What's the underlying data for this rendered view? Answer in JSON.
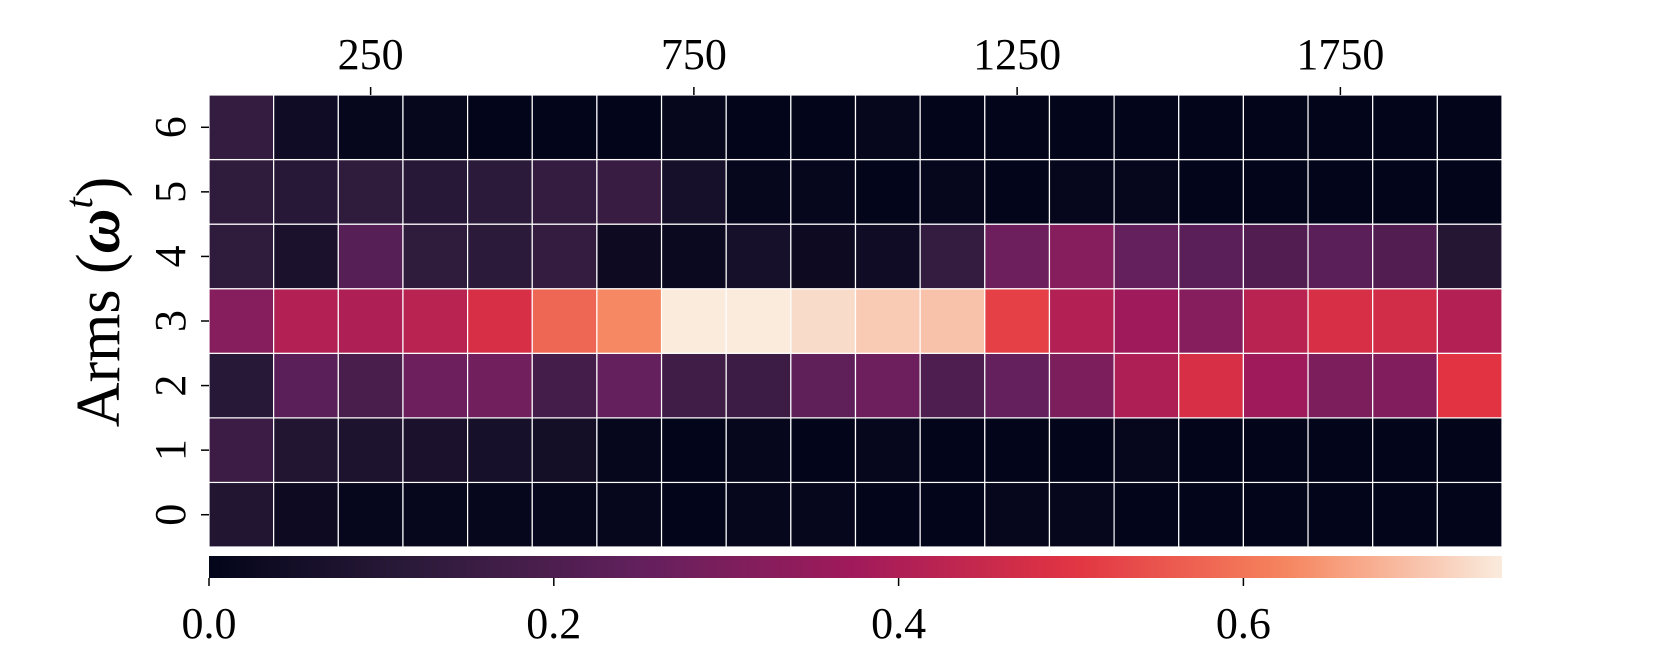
{
  "chart_data": {
    "type": "heatmap",
    "title": "",
    "xlabel": "",
    "ylabel_text": "Arms (",
    "ylabel_symbol": "ω",
    "ylabel_superscript": "t",
    "ylabel_close": ")",
    "x_ticks": [
      {
        "label": "250",
        "value": 250
      },
      {
        "label": "750",
        "value": 750
      },
      {
        "label": "1250",
        "value": 1250
      },
      {
        "label": "1750",
        "value": 1750
      }
    ],
    "x_range": [
      0,
      2000
    ],
    "n_columns": 20,
    "rows": [
      "0",
      "1",
      "2",
      "3",
      "4",
      "5",
      "6"
    ],
    "values": [
      [
        0.09,
        0.03,
        0.01,
        0.01,
        0.01,
        0.01,
        0.01,
        0.0,
        0.01,
        0.01,
        0.0,
        0.0,
        0.01,
        0.01,
        0.0,
        0.0,
        0.0,
        0.0,
        0.0,
        0.0
      ],
      [
        0.16,
        0.09,
        0.08,
        0.07,
        0.06,
        0.05,
        0.01,
        0.0,
        0.01,
        0.0,
        0.01,
        0.0,
        0.0,
        0.0,
        0.01,
        0.0,
        0.0,
        0.0,
        0.0,
        0.0
      ],
      [
        0.11,
        0.23,
        0.19,
        0.27,
        0.28,
        0.18,
        0.25,
        0.17,
        0.16,
        0.24,
        0.27,
        0.2,
        0.25,
        0.3,
        0.4,
        0.48,
        0.37,
        0.3,
        0.31,
        0.5
      ],
      [
        0.32,
        0.41,
        0.4,
        0.42,
        0.48,
        0.58,
        0.63,
        0.75,
        0.75,
        0.73,
        0.71,
        0.7,
        0.52,
        0.41,
        0.37,
        0.32,
        0.42,
        0.48,
        0.47,
        0.41
      ],
      [
        0.13,
        0.07,
        0.22,
        0.13,
        0.12,
        0.14,
        0.03,
        0.02,
        0.06,
        0.03,
        0.04,
        0.14,
        0.27,
        0.32,
        0.25,
        0.23,
        0.21,
        0.23,
        0.21,
        0.1
      ],
      [
        0.13,
        0.11,
        0.13,
        0.11,
        0.12,
        0.14,
        0.15,
        0.06,
        0.01,
        0.01,
        0.0,
        0.01,
        0.0,
        0.01,
        0.01,
        0.0,
        0.0,
        0.0,
        0.0,
        0.0
      ],
      [
        0.14,
        0.04,
        0.01,
        0.01,
        0.0,
        0.0,
        0.0,
        0.01,
        0.0,
        0.0,
        0.01,
        0.0,
        0.0,
        0.0,
        0.0,
        0.0,
        0.0,
        0.0,
        0.0,
        0.0
      ]
    ],
    "colorbar": {
      "ticks": [
        {
          "label": "0.0",
          "value": 0.0
        },
        {
          "label": "0.2",
          "value": 0.2
        },
        {
          "label": "0.4",
          "value": 0.4
        },
        {
          "label": "0.6",
          "value": 0.6
        }
      ],
      "vmin": 0.0,
      "vmax": 0.75,
      "colormap": "rocket"
    },
    "colormap_stops": [
      "#03051a",
      "#2d1b3b",
      "#63205d",
      "#a11a5b",
      "#e13342",
      "#f6855e",
      "#faebdd"
    ],
    "gridline_color": "#ffffff",
    "legend": "colorbar-bottom"
  }
}
